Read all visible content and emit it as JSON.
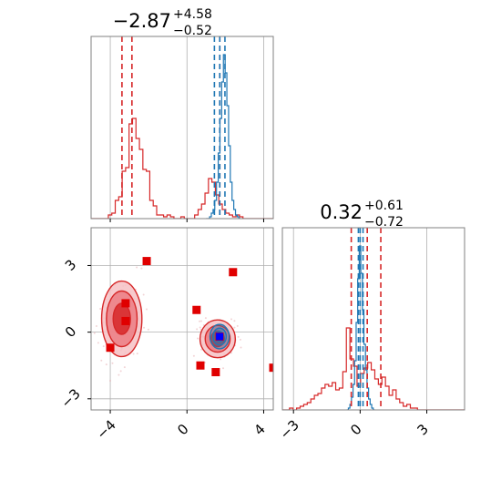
{
  "chart_data": {
    "type": "corner",
    "parameters": [
      {
        "title_main": "−2.87",
        "title_sup": "+4.58",
        "title_sub": "−0.52"
      },
      {
        "title_main": "0.32",
        "title_sup": "+0.61",
        "title_sub": "−0.72"
      }
    ],
    "ranges": {
      "p1": [
        -5,
        4.5
      ],
      "p2": [
        -3.5,
        4.7
      ]
    },
    "ticks": {
      "p1": [
        -4,
        0,
        4
      ],
      "p2": [
        -3,
        0,
        3
      ]
    },
    "tick_labels": {
      "p1": [
        "−4",
        "0",
        "4"
      ],
      "p2": [
        "−3",
        "0",
        "3"
      ]
    },
    "grid": true,
    "colors": {
      "red": "#d62728",
      "blue": "#1f77b4",
      "fill": "#f4a3a8",
      "marker": "#e00000",
      "truth": "#0000ff",
      "grid": "#b0b0b0",
      "axis": "#808080"
    },
    "series": [
      {
        "color": "#d62728",
        "hist_p1": {
          "edges_start": -5,
          "bin": 0.18,
          "heights": [
            0,
            0,
            0,
            0,
            0,
            0.02,
            0.03,
            0.1,
            0.12,
            0.26,
            0.28,
            0.52,
            0.55,
            0.44,
            0.38,
            0.27,
            0.26,
            0.1,
            0.07,
            0.02,
            0.02,
            0.01,
            0.02,
            0.01,
            0,
            0,
            0.01,
            0,
            0,
            0,
            0.02,
            0.05,
            0.08,
            0.14,
            0.22,
            0.2,
            0.13,
            0.08,
            0.05,
            0.03,
            0.02,
            0.01,
            0.02,
            0.01,
            0,
            0,
            0,
            0,
            0,
            0,
            0,
            0,
            0
          ]
        },
        "quantiles_p1": [
          -3.39,
          -2.87,
          1.71
        ],
        "hist_p2": {
          "edges_start": -3.5,
          "bin": 0.16,
          "heights": [
            0,
            0,
            0.01,
            0,
            0.01,
            0.02,
            0.03,
            0.04,
            0.06,
            0.08,
            0.09,
            0.12,
            0.14,
            0.13,
            0.15,
            0.11,
            0.12,
            0.21,
            0.45,
            0.28,
            0.24,
            0.13,
            0.2,
            0.23,
            0.26,
            0.22,
            0.17,
            0.14,
            0.18,
            0.13,
            0.08,
            0.11,
            0.06,
            0.04,
            0.02,
            0.03,
            0.01,
            0.01,
            0,
            0,
            0,
            0,
            0,
            0,
            0,
            0,
            0,
            0,
            0,
            0,
            0,
            0
          ]
        },
        "quantiles_p2": [
          -0.4,
          0.32,
          0.93
        ],
        "contours": [
          {
            "center": [
              -3.4,
              0.6
            ],
            "rx": [
              0.45,
              0.8,
              1.05
            ],
            "ry": [
              0.7,
              1.25,
              1.7
            ]
          },
          {
            "center": [
              1.6,
              -0.3
            ],
            "rx": [
              0.35,
              0.65,
              0.92
            ],
            "ry": [
              0.35,
              0.6,
              0.85
            ]
          }
        ]
      },
      {
        "color": "#1f77b4",
        "hist_p1": {
          "edges_start": 1.0,
          "bin": 0.09,
          "heights": [
            0,
            0,
            0.01,
            0.03,
            0.05,
            0.1,
            0.2,
            0.36,
            0.55,
            0.75,
            0.9,
            0.8,
            0.62,
            0.4,
            0.2,
            0.1,
            0.05,
            0.02,
            0.01,
            0
          ]
        },
        "quantiles_p1": [
          1.43,
          1.71,
          1.98
        ],
        "hist_p2": {
          "edges_start": -0.6,
          "bin": 0.07,
          "heights": [
            0,
            0.01,
            0.03,
            0.07,
            0.14,
            0.27,
            0.48,
            0.72,
            0.9,
            0.75,
            0.55,
            0.36,
            0.22,
            0.12,
            0.06,
            0.03,
            0.01,
            0
          ]
        },
        "quantiles_p2": [
          -0.08,
          0.0,
          0.13
        ],
        "contours": [
          {
            "center": [
              1.7,
              -0.2
            ],
            "rx": [
              0.2,
              0.35,
              0.5
            ],
            "ry": [
              0.22,
              0.38,
              0.55
            ]
          }
        ]
      }
    ],
    "markers": [
      {
        "p1": -2.1,
        "p2": 3.2
      },
      {
        "p1": -3.2,
        "p2": 1.3
      },
      {
        "p1": -3.2,
        "p2": 0.5
      },
      {
        "p1": -4.0,
        "p2": -0.7
      },
      {
        "p1": 0.5,
        "p2": 1.0
      },
      {
        "p1": 2.4,
        "p2": 2.7
      },
      {
        "p1": 0.7,
        "p2": -1.5
      },
      {
        "p1": 1.5,
        "p2": -1.8
      },
      {
        "p1": 4.5,
        "p2": -1.6
      },
      {
        "p1": 1.7,
        "p2": -0.2
      }
    ],
    "truth": {
      "p1": 1.7,
      "p2": -0.2
    }
  }
}
